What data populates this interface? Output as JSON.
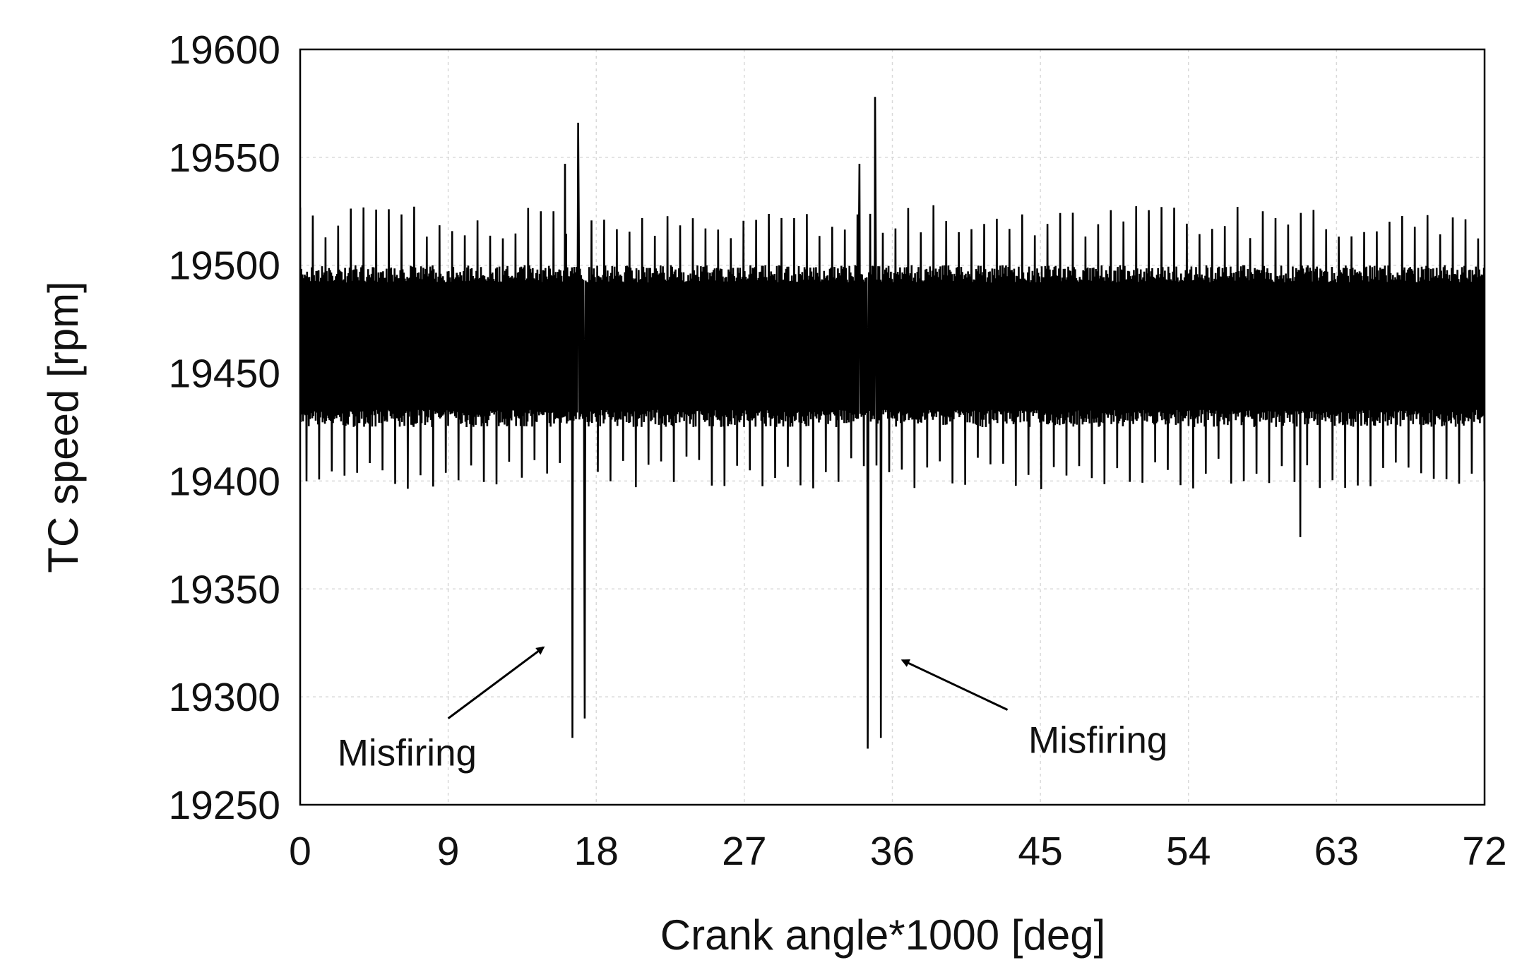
{
  "chart_data": {
    "type": "line",
    "title": "",
    "xlabel": "Crank angle*1000 [deg]",
    "ylabel": "TC speed [rpm]",
    "xlim": [
      0,
      72
    ],
    "ylim": [
      19250,
      19600
    ],
    "x_ticks": [
      0,
      9,
      18,
      27,
      36,
      45,
      54,
      63,
      72
    ],
    "y_ticks": [
      19250,
      19300,
      19350,
      19400,
      19450,
      19500,
      19550,
      19600
    ],
    "grid": true,
    "legend": "none",
    "colors": {
      "series": "#000000",
      "grid": "#d9d9d9",
      "frame": "#000000"
    },
    "series": [
      {
        "description_values": "TC speed oscillating between about 19420 and 19500 rpm with periodic peaks near 19520 and dips near 19400; misfiring events near 16.5 and 34.5 (x1000 deg) with spikes up to ~19565/19578 and drops to ~19280/19276",
        "baseline_band": [
          19425,
          19500
        ],
        "periodic_peak_approx": 19520,
        "periodic_dip_approx": 19402,
        "events": [
          {
            "x": 16.1,
            "y": 19547
          },
          {
            "x": 16.55,
            "y": 19281
          },
          {
            "x": 16.9,
            "y": 19566
          },
          {
            "x": 17.3,
            "y": 19290
          },
          {
            "x": 34.0,
            "y": 19547
          },
          {
            "x": 34.5,
            "y": 19276
          },
          {
            "x": 34.95,
            "y": 19578
          },
          {
            "x": 35.3,
            "y": 19281
          },
          {
            "x": 60.8,
            "y": 19374
          }
        ]
      }
    ],
    "annotations": [
      {
        "text": "Misfiring",
        "label_x": 6.5,
        "label_y": 19274,
        "arrow_from": [
          9.0,
          19290
        ],
        "arrow_to": [
          14.8,
          19323
        ]
      },
      {
        "text": "Misfiring",
        "label_x": 48.5,
        "label_y": 19280,
        "arrow_from": [
          43.0,
          19294
        ],
        "arrow_to": [
          36.6,
          19317
        ]
      }
    ]
  }
}
